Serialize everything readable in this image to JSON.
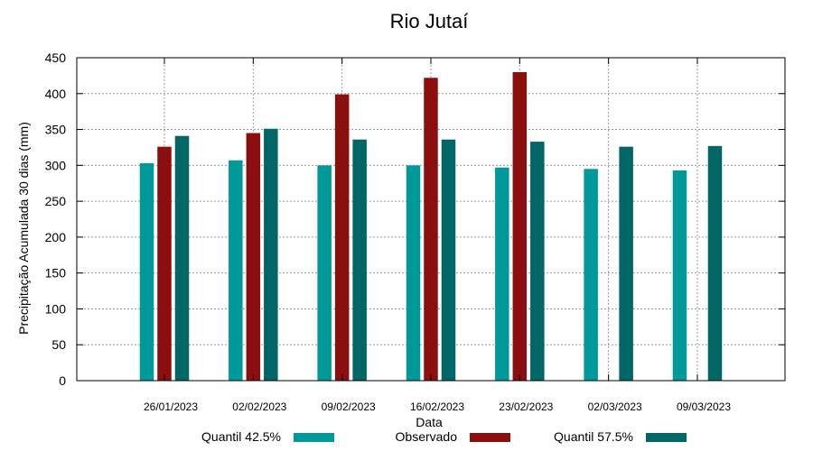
{
  "chart_data": {
    "type": "bar",
    "title": "Rio Jutaí",
    "xlabel": "Data",
    "ylabel": "Precipitação Acumulada 30 dias (mm)",
    "ylim": [
      0,
      450
    ],
    "yticks": [
      0,
      50,
      100,
      150,
      200,
      250,
      300,
      350,
      400,
      450
    ],
    "grid": true,
    "legend_position": "bottom",
    "categories": [
      "26/01/2023",
      "02/02/2023",
      "09/02/2023",
      "16/02/2023",
      "23/02/2023",
      "02/03/2023",
      "09/03/2023"
    ],
    "series": [
      {
        "name": "Quantil 42.5%",
        "color": "#009999",
        "values": [
          303,
          307,
          300,
          300,
          297,
          295,
          293
        ]
      },
      {
        "name": "Observado",
        "color": "#8b0f0f",
        "values": [
          326,
          345,
          399,
          422,
          430,
          null,
          null
        ]
      },
      {
        "name": "Quantil 57.5%",
        "color": "#006666",
        "values": [
          341,
          351,
          336,
          336,
          333,
          326,
          327
        ]
      }
    ]
  }
}
